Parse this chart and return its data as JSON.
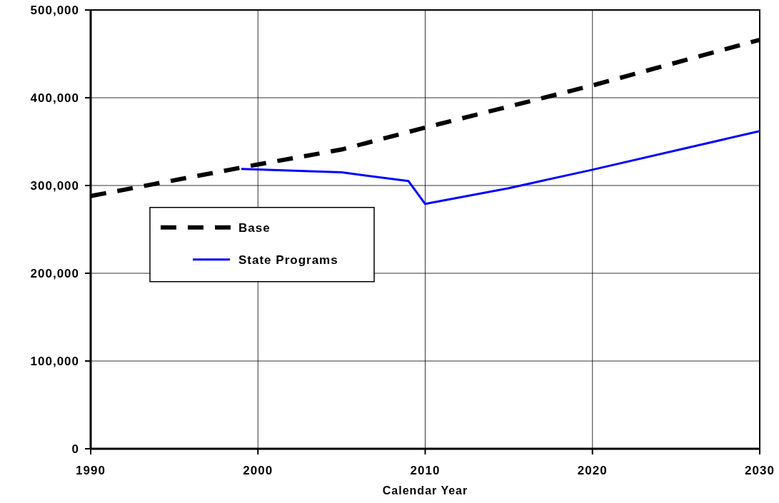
{
  "chart_data": {
    "type": "line",
    "xlabel": "Calendar Year",
    "xlim": [
      1990,
      2030
    ],
    "xticks": [
      1990,
      2000,
      2010,
      2020,
      2030
    ],
    "ylim": [
      0,
      500000
    ],
    "yticks": [
      {
        "value": 0,
        "label": "0"
      },
      {
        "value": 100000,
        "label": "100,000"
      },
      {
        "value": 200000,
        "label": "200,000"
      },
      {
        "value": 300000,
        "label": "300,000"
      },
      {
        "value": 400000,
        "label": "400,000"
      },
      {
        "value": 500000,
        "label": "500,000"
      }
    ],
    "grid": true,
    "legend": "left",
    "series": [
      {
        "name": "Base",
        "color": "#000000",
        "line_style": "dashed",
        "x": [
          1990,
          2000,
          2005,
          2010,
          2020,
          2030
        ],
        "values": [
          288000,
          324000,
          341000,
          366000,
          414000,
          466000
        ]
      },
      {
        "name": "State Programs",
        "color": "#0000ff",
        "line_style": "solid",
        "x": [
          1999,
          2005,
          2009,
          2010,
          2015,
          2020,
          2030
        ],
        "values": [
          319000,
          315000,
          305000,
          279000,
          297000,
          318000,
          362000
        ]
      }
    ]
  }
}
